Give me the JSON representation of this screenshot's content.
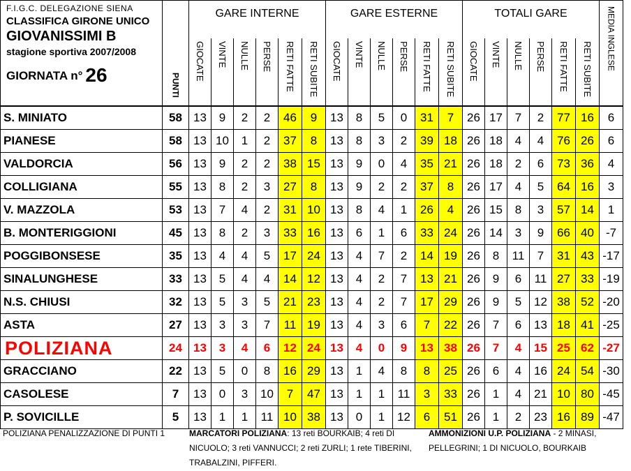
{
  "header": {
    "federation": "F.I.G.C. DELEGAZIONE SIENA",
    "classification": "CLASSIFICA GIRONE UNICO",
    "category": "GIOVANISSIMI B",
    "season": "stagione sportiva 2007/2008",
    "matchday_label": "GIORNATA n°",
    "matchday_number": "26",
    "points_label": "PUNTI",
    "media_label": "MEDIA INGLESE",
    "groups": [
      "GARE INTERNE",
      "GARE ESTERNE",
      "TOTALI GARE"
    ],
    "subcols": [
      "GIOCATE",
      "VINTE",
      "NULLE",
      "PERSE",
      "RETI FATTE",
      "RETI SUBITE"
    ]
  },
  "teams": [
    {
      "name": "S. MINIATO",
      "pts": "58",
      "home": [
        "13",
        "9",
        "2",
        "2",
        "46",
        "9"
      ],
      "away": [
        "13",
        "8",
        "5",
        "0",
        "31",
        "7"
      ],
      "total": [
        "26",
        "17",
        "7",
        "2",
        "77",
        "16"
      ],
      "media": "6"
    },
    {
      "name": "PIANESE",
      "pts": "58",
      "home": [
        "13",
        "10",
        "1",
        "2",
        "37",
        "8"
      ],
      "away": [
        "13",
        "8",
        "3",
        "2",
        "39",
        "18"
      ],
      "total": [
        "26",
        "18",
        "4",
        "4",
        "76",
        "26"
      ],
      "media": "6"
    },
    {
      "name": "VALDORCIA",
      "pts": "56",
      "home": [
        "13",
        "9",
        "2",
        "2",
        "38",
        "15"
      ],
      "away": [
        "13",
        "9",
        "0",
        "4",
        "35",
        "21"
      ],
      "total": [
        "26",
        "18",
        "2",
        "6",
        "73",
        "36"
      ],
      "media": "4"
    },
    {
      "name": "COLLIGIANA",
      "pts": "55",
      "home": [
        "13",
        "8",
        "2",
        "3",
        "27",
        "8"
      ],
      "away": [
        "13",
        "9",
        "2",
        "2",
        "37",
        "8"
      ],
      "total": [
        "26",
        "17",
        "4",
        "5",
        "64",
        "16"
      ],
      "media": "3"
    },
    {
      "name": "V. MAZZOLA",
      "pts": "53",
      "home": [
        "13",
        "7",
        "4",
        "2",
        "31",
        "10"
      ],
      "away": [
        "13",
        "8",
        "4",
        "1",
        "26",
        "4"
      ],
      "total": [
        "26",
        "15",
        "8",
        "3",
        "57",
        "14"
      ],
      "media": "1"
    },
    {
      "name": "B. MONTERIGGIONI",
      "pts": "45",
      "home": [
        "13",
        "8",
        "2",
        "3",
        "33",
        "16"
      ],
      "away": [
        "13",
        "6",
        "1",
        "6",
        "33",
        "24"
      ],
      "total": [
        "26",
        "14",
        "3",
        "9",
        "66",
        "40"
      ],
      "media": "-7"
    },
    {
      "name": "POGGIBONSESE",
      "pts": "35",
      "home": [
        "13",
        "4",
        "4",
        "5",
        "17",
        "24"
      ],
      "away": [
        "13",
        "4",
        "7",
        "2",
        "14",
        "19"
      ],
      "total": [
        "26",
        "8",
        "11",
        "7",
        "31",
        "43"
      ],
      "media": "-17"
    },
    {
      "name": "SINALUNGHESE",
      "pts": "33",
      "home": [
        "13",
        "5",
        "4",
        "4",
        "14",
        "12"
      ],
      "away": [
        "13",
        "4",
        "2",
        "7",
        "13",
        "21"
      ],
      "total": [
        "26",
        "9",
        "6",
        "11",
        "27",
        "33"
      ],
      "media": "-19"
    },
    {
      "name": "N.S. CHIUSI",
      "pts": "32",
      "home": [
        "13",
        "5",
        "3",
        "5",
        "21",
        "23"
      ],
      "away": [
        "13",
        "4",
        "2",
        "7",
        "17",
        "29"
      ],
      "total": [
        "26",
        "9",
        "5",
        "12",
        "38",
        "52"
      ],
      "media": "-20"
    },
    {
      "name": "ASTA",
      "pts": "27",
      "home": [
        "13",
        "3",
        "3",
        "7",
        "11",
        "19"
      ],
      "away": [
        "13",
        "4",
        "3",
        "6",
        "7",
        "22"
      ],
      "total": [
        "26",
        "7",
        "6",
        "13",
        "18",
        "41"
      ],
      "media": "-25"
    },
    {
      "name": "POLIZIANA",
      "pts": "24",
      "home": [
        "13",
        "3",
        "4",
        "6",
        "12",
        "24"
      ],
      "away": [
        "13",
        "4",
        "0",
        "9",
        "13",
        "38"
      ],
      "total": [
        "26",
        "7",
        "4",
        "15",
        "25",
        "62"
      ],
      "media": "-27",
      "highlight": true
    },
    {
      "name": "GRACCIANO",
      "pts": "22",
      "home": [
        "13",
        "5",
        "0",
        "8",
        "16",
        "29"
      ],
      "away": [
        "13",
        "1",
        "4",
        "8",
        "8",
        "25"
      ],
      "total": [
        "26",
        "6",
        "4",
        "16",
        "24",
        "54"
      ],
      "media": "-30"
    },
    {
      "name": "CASOLESE",
      "pts": "7",
      "home": [
        "13",
        "0",
        "3",
        "10",
        "7",
        "47"
      ],
      "away": [
        "13",
        "1",
        "1",
        "11",
        "3",
        "33"
      ],
      "total": [
        "26",
        "1",
        "4",
        "21",
        "10",
        "80"
      ],
      "media": "-45"
    },
    {
      "name": "P. SOVICILLE",
      "pts": "5",
      "home": [
        "13",
        "1",
        "1",
        "11",
        "10",
        "38"
      ],
      "away": [
        "13",
        "0",
        "1",
        "12",
        "6",
        "51"
      ],
      "total": [
        "26",
        "1",
        "2",
        "23",
        "16",
        "89"
      ],
      "media": "-47"
    }
  ],
  "footer": {
    "penalty": "POLIZIANA PENALIZZAZIONE DI PUNTI 1",
    "scorers_label": "MARCATORI POLIZIANA",
    "scorers_text": ": 13 reti BOURKAIB; 4 reti DI NICUOLO; 3 reti VANNUCCI; 2 reti ZURLI; 1 rete TIBERINI, TRABALZINI, PIFFERI.",
    "warnings_label": "AMMONIZIONI U.P. POLIZIANA",
    "warnings_text": " - 2 MINASI, PELLEGRINI; 1 DI NICUOLO, BOURKAIB"
  },
  "colors": {
    "highlight": "#ffff00",
    "poliziana": "#ff0000"
  }
}
